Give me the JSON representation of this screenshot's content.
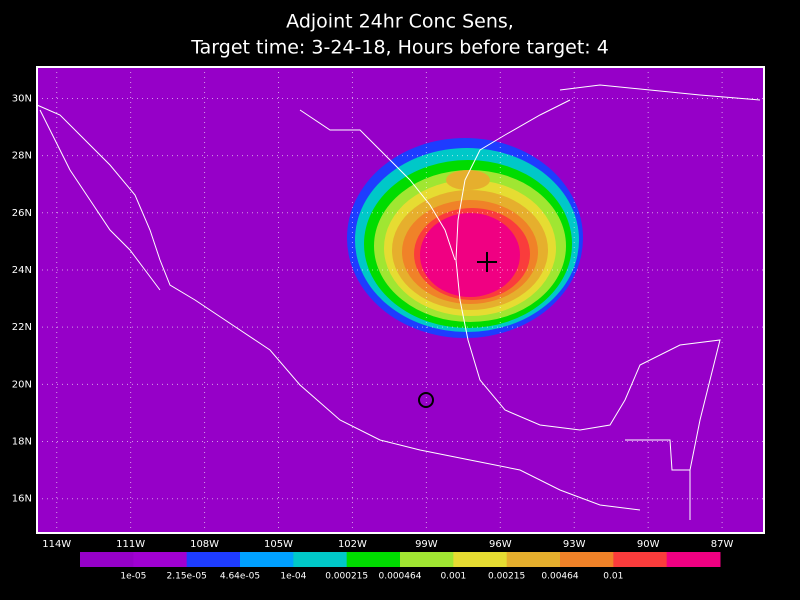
{
  "title": [
    "Adjoint 24hr Conc Sens,",
    "Target time: 3-24-18, Hours before target: 4"
  ],
  "map": {
    "lon_range": [
      -114.8,
      -85.3
    ],
    "lat_range": [
      31.1,
      14.8
    ],
    "lon_ticks": [
      {
        "value": -114,
        "label": "114W"
      },
      {
        "value": -111,
        "label": "111W"
      },
      {
        "value": -108,
        "label": "108W"
      },
      {
        "value": -105,
        "label": "105W"
      },
      {
        "value": -102,
        "label": "102W"
      },
      {
        "value": -99,
        "label": "99W"
      },
      {
        "value": -96,
        "label": "96W"
      },
      {
        "value": -93,
        "label": "93W"
      },
      {
        "value": -90,
        "label": "90W"
      },
      {
        "value": -87,
        "label": "87W"
      }
    ],
    "lat_ticks": [
      {
        "value": 30,
        "label": "30N"
      },
      {
        "value": 28,
        "label": "28N"
      },
      {
        "value": 26,
        "label": "26N"
      },
      {
        "value": 24,
        "label": "24N"
      },
      {
        "value": 22,
        "label": "22N"
      },
      {
        "value": 20,
        "label": "20N"
      },
      {
        "value": 18,
        "label": "18N"
      },
      {
        "value": 16,
        "label": "16N"
      }
    ],
    "grid": true
  },
  "colorbar": {
    "colors": [
      "#9600c8",
      "#a000d2",
      "#1e3cff",
      "#00a0ff",
      "#00c8c8",
      "#00dc00",
      "#a0e632",
      "#e6dc32",
      "#e6af2d",
      "#f08228",
      "#fa3c3c",
      "#f00082"
    ],
    "labels": [
      "1e-05",
      "2.15e-05",
      "4.64e-05",
      "1e-04",
      "0.000215",
      "0.000464",
      "0.001",
      "0.00215",
      "0.00464",
      "0.01"
    ]
  }
}
